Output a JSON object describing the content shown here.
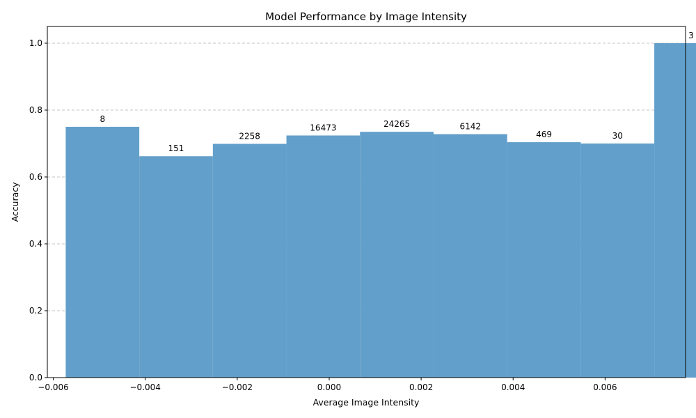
{
  "chart_data": {
    "type": "bar",
    "title": "Model Performance by Image Intensity",
    "xlabel": "Average Image Intensity",
    "ylabel": "Accuracy",
    "xlim": [
      -0.00613,
      0.00775
    ],
    "ylim": [
      0,
      1.05
    ],
    "x_ticks": [
      -0.006,
      -0.004,
      -0.002,
      0.0,
      0.002,
      0.004,
      0.006
    ],
    "x_tick_labels": [
      "−0.006",
      "−0.004",
      "−0.002",
      "0.000",
      "0.002",
      "0.004",
      "0.006"
    ],
    "y_ticks": [
      0.0,
      0.2,
      0.4,
      0.6,
      0.8,
      1.0
    ],
    "y_tick_labels": [
      "0.0",
      "0.2",
      "0.4",
      "0.6",
      "0.8",
      "1.0"
    ],
    "grid": "y-dashed",
    "bar_width": 0.0016,
    "bar_color": "#629fca",
    "bars": [
      {
        "x": -0.00493,
        "value": 0.75,
        "label": "8"
      },
      {
        "x": -0.00333,
        "value": 0.662,
        "label": "151"
      },
      {
        "x": -0.00173,
        "value": 0.699,
        "label": "2258"
      },
      {
        "x": -0.00013,
        "value": 0.724,
        "label": "16473"
      },
      {
        "x": 0.00147,
        "value": 0.735,
        "label": "24265"
      },
      {
        "x": 0.00307,
        "value": 0.728,
        "label": "6142"
      },
      {
        "x": 0.00467,
        "value": 0.704,
        "label": "469"
      },
      {
        "x": 0.00627,
        "value": 0.7,
        "label": "30"
      },
      {
        "x": 0.00787,
        "value": 1.0,
        "label": "3"
      }
    ]
  }
}
